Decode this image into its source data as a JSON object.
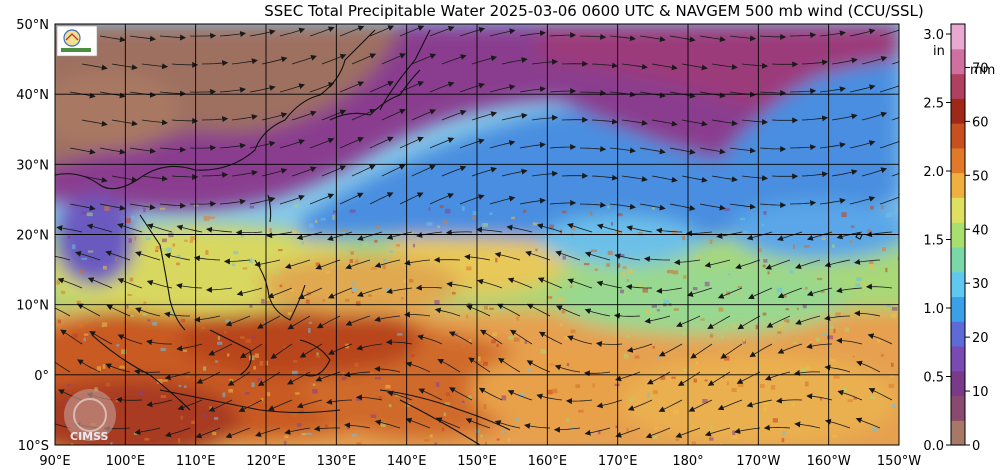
{
  "title": "SSEC Total Precipitable Water  2025-03-06 0600 UTC & NAVGEM 500 mb wind (CCU/SSL)",
  "lat_labels": [
    "50°N",
    "40°N",
    "30°N",
    "20°N",
    "10°N",
    "0°",
    "10°S"
  ],
  "lon_labels": [
    "90°E",
    "100°E",
    "110°E",
    "120°E",
    "130°E",
    "140°E",
    "150°E",
    "160°E",
    "170°E",
    "180°",
    "170°W",
    "160°W",
    "150°W"
  ],
  "colorbar": {
    "unit_in": "in",
    "unit_mm": "mm",
    "inch_ticks": [
      "3.0",
      "2.5",
      "2.0",
      "1.5",
      "1.0",
      "0.5",
      "0.0"
    ],
    "mm_ticks": [
      "70",
      "60",
      "50",
      "40",
      "30",
      "20",
      "10",
      "0"
    ],
    "colors": [
      "#a67868",
      "#8a4a70",
      "#7a3a8a",
      "#7a4ab4",
      "#5e6ad8",
      "#3aa0e8",
      "#60c8f0",
      "#7ad8a8",
      "#a8e070",
      "#e0e060",
      "#f0b040",
      "#e07a28",
      "#c85020",
      "#a02818",
      "#b04060",
      "#d070a0",
      "#e8a8d0"
    ]
  },
  "logos": {
    "top_left": "SSEC Lab logo",
    "bottom_left_text": "CIMSS"
  },
  "palette": {
    "dry_brown": "#9e7060",
    "purple": "#8a3d8f",
    "blue": "#4a86e0",
    "light_blue": "#78c8ee",
    "green": "#88d890",
    "yellow": "#e8d85a",
    "orange": "#e89040",
    "dark_orange": "#c86428",
    "brown_red": "#a0381c",
    "grid": "#000000"
  }
}
